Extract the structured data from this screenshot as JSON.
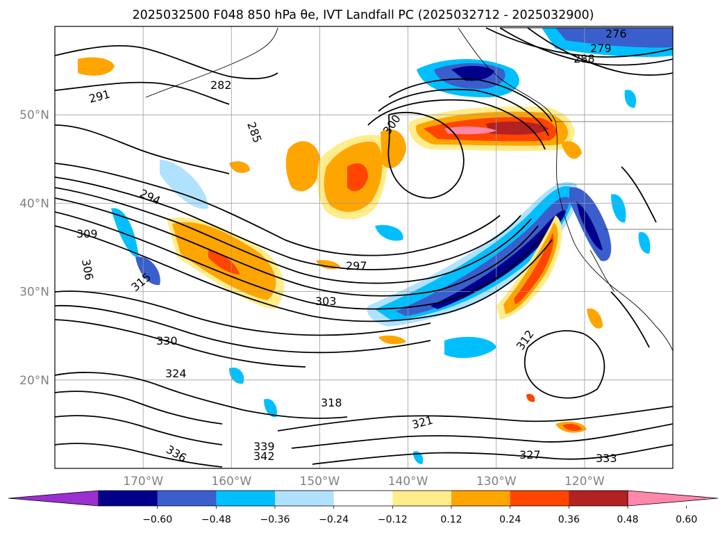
{
  "title": "2025032500 F048 850 hPa θe, IVT Landfall PC (2025032712 - 2025032900)",
  "map": {
    "lat_labels": [
      {
        "lat": 50,
        "text": "50°N"
      },
      {
        "lat": 40,
        "text": "40°N"
      },
      {
        "lat": 30,
        "text": "30°N"
      },
      {
        "lat": 20,
        "text": "20°N"
      }
    ],
    "lon_labels": [
      {
        "lon": -170,
        "text": "170°W"
      },
      {
        "lon": -160,
        "text": "160°W"
      },
      {
        "lon": -150,
        "text": "150°W"
      },
      {
        "lon": -140,
        "text": "140°W"
      },
      {
        "lon": -130,
        "text": "130°W"
      },
      {
        "lon": -120,
        "text": "120°W"
      }
    ],
    "grid_lats": [
      20,
      30,
      40,
      50
    ],
    "grid_lons": [
      -170,
      -160,
      -150,
      -140,
      -130,
      -120
    ],
    "extent": {
      "lon_min": -180,
      "lon_max": -110,
      "lat_min": 10,
      "lat_max": 60
    },
    "contour_labels": [
      "276",
      "279",
      "282",
      "285",
      "288",
      "291",
      "294",
      "297",
      "300",
      "303",
      "306",
      "309",
      "312",
      "315",
      "318",
      "321",
      "324",
      "327",
      "330",
      "333",
      "336",
      "339",
      "342"
    ],
    "colorbar": {
      "colors": [
        "#9b30d0",
        "#00008b",
        "#3a5fcd",
        "#00bfff",
        "#b0e2ff",
        "#ffffff",
        "#ffec8b",
        "#ffa500",
        "#ff4500",
        "#b22222",
        "#ff88aa"
      ],
      "ticks": [
        "−0.60",
        "−0.48",
        "−0.36",
        "−0.24",
        "−0.12",
        "0.12",
        "0.24",
        "0.36",
        "0.48",
        "0.60"
      ]
    }
  }
}
